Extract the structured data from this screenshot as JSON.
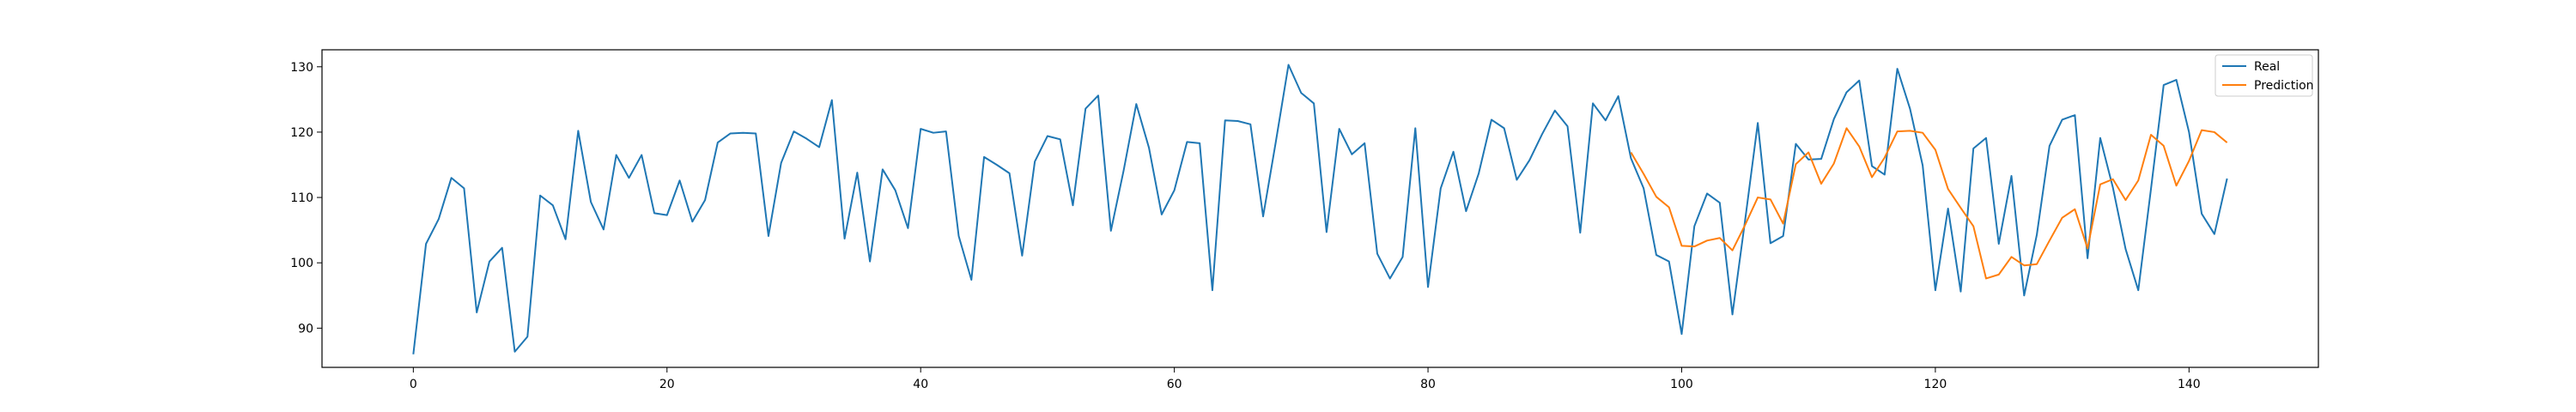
{
  "chart_data": {
    "type": "line",
    "title": "",
    "xlabel": "",
    "ylabel": "",
    "xlim": [
      -7.2,
      150.2
    ],
    "ylim": [
      84,
      132.6
    ],
    "x_ticks": [
      0,
      20,
      40,
      60,
      80,
      100,
      120,
      140
    ],
    "y_ticks": [
      90,
      100,
      110,
      120,
      130
    ],
    "grid": false,
    "legend_position": "upper right",
    "series": [
      {
        "name": "Real",
        "color": "#1f77b4",
        "x_start": 0,
        "values": [
          86,
          102.9,
          106.7,
          113,
          111.4,
          92.4,
          100.2,
          102.3,
          86.4,
          88.7,
          110.3,
          108.8,
          103.6,
          120.2,
          109.3,
          105.1,
          116.5,
          113,
          116.5,
          107.6,
          107.3,
          112.6,
          106.3,
          109.6,
          118.4,
          119.8,
          119.9,
          119.8,
          104.1,
          115.3,
          120.1,
          119,
          117.7,
          124.9,
          103.7,
          113.8,
          100.2,
          114.3,
          111.1,
          105.3,
          120.5,
          119.9,
          120.1,
          104.1,
          97.4,
          116.2,
          115,
          113.7,
          101.1,
          115.5,
          119.4,
          118.9,
          108.8,
          123.6,
          125.6,
          104.9,
          114.1,
          124.3,
          117.6,
          107.4,
          111.1,
          118.5,
          118.3,
          95.8,
          121.8,
          121.7,
          121.2,
          107.1,
          118.5,
          130.3,
          126,
          124.4,
          104.7,
          120.5,
          116.6,
          118.3,
          101.4,
          97.6,
          100.9,
          120.6,
          96.3,
          111.4,
          117,
          107.9,
          113.7,
          121.9,
          120.6,
          112.7,
          115.7,
          119.7,
          123.3,
          120.9,
          104.6,
          124.4,
          121.8,
          125.5,
          116,
          111.4,
          101.2,
          100.2,
          89.1,
          105.6,
          110.6,
          109.2,
          92.1,
          106.5,
          121.4,
          103,
          104.1,
          118.2,
          115.8,
          115.9,
          122,
          126.1,
          127.9,
          114.8,
          113.5,
          129.7,
          123.6,
          114.9,
          95.8,
          108.3,
          95.6,
          117.5,
          119.1,
          102.9,
          113.3,
          95,
          104.3,
          117.9,
          121.9,
          122.6,
          100.7,
          119.1,
          111.5,
          102.1,
          95.8,
          111.3,
          127.2,
          128,
          120,
          107.5,
          104.4,
          112.9
        ]
      },
      {
        "name": "Prediction",
        "color": "#ff7f0e",
        "x_start": 96,
        "values": [
          116.9,
          113.6,
          110.1,
          108.5,
          102.6,
          102.5,
          103.4,
          103.8,
          101.9,
          105.8,
          110,
          109.7,
          106,
          115.1,
          116.9,
          112.1,
          115.2,
          120.6,
          117.8,
          113.1,
          116.1,
          120.1,
          120.2,
          119.9,
          117.3,
          111.3,
          108.4,
          105.6,
          97.6,
          98.2,
          100.9,
          99.6,
          99.8,
          103.4,
          106.9,
          108.2,
          102.2,
          112,
          112.8,
          109.6,
          112.6,
          119.6,
          117.9,
          111.8,
          115.6,
          120.3,
          120,
          118.4
        ]
      }
    ]
  }
}
